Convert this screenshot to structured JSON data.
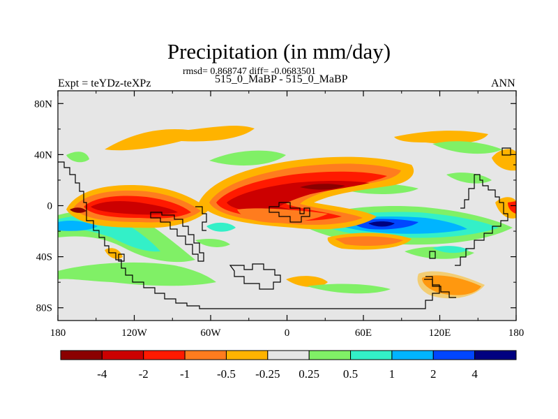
{
  "title": "Precipitation (in mm/day)",
  "stats_text": "rmsd= 0.868747 diff= -0.0683501",
  "experiment_label": "Expt = teYDz-teXPz",
  "cases_label": "515_0_MaBP - 515_0_MaBP",
  "season_label": "ANN",
  "y_ticks": [
    {
      "label": "80N",
      "value": 80
    },
    {
      "label": "40N",
      "value": 40
    },
    {
      "label": "0",
      "value": 0
    },
    {
      "label": "40S",
      "value": -40
    },
    {
      "label": "80S",
      "value": -80
    }
  ],
  "x_ticks": [
    {
      "label": "180",
      "value": -180
    },
    {
      "label": "120W",
      "value": -120
    },
    {
      "label": "60W",
      "value": -60
    },
    {
      "label": "0",
      "value": 0
    },
    {
      "label": "60E",
      "value": 60
    },
    {
      "label": "120E",
      "value": 120
    },
    {
      "label": "180",
      "value": 180
    }
  ],
  "colorbar": {
    "colors": [
      "#8b0000",
      "#cc0000",
      "#ff1a00",
      "#ff7c1e",
      "#ffb300",
      "#e6e6e6",
      "#80f066",
      "#33f0c8",
      "#00b4ff",
      "#0046ff",
      "#000080"
    ],
    "labels": [
      "-4",
      "-2",
      "-1",
      "-0.5",
      "-0.25",
      "0.25",
      "0.5",
      "1",
      "2",
      "4"
    ]
  },
  "colors": {
    "map_background": "#e6e6e6",
    "coastline": "#000000"
  }
}
